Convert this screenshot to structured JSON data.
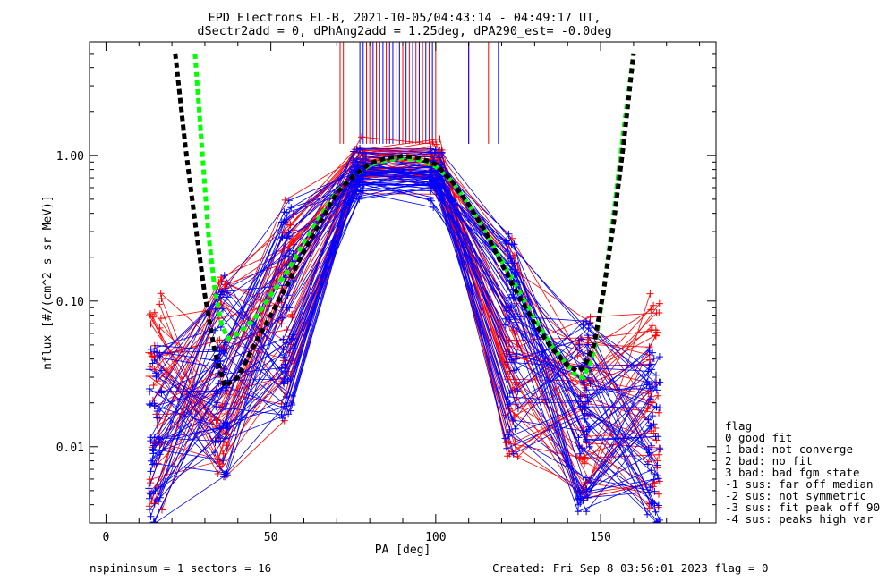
{
  "chart_data": {
    "type": "line",
    "title": "EPD Electrons EL-B, 2021-10-05/04:43:14 - 04:49:17 UT,",
    "subtitle": "dSectr2add = 0, dPhAng2add = 1.25deg, dPA290_est=  -0.0deg",
    "xlabel": "PA [deg]",
    "ylabel": "nflux [#/(cm^2 s sr MeV)]",
    "xlim": [
      -5,
      185
    ],
    "ylim": [
      0.003,
      6.0
    ],
    "yscale": "log",
    "xticks": [
      0,
      50,
      100,
      150
    ],
    "yticks": [
      {
        "value": 1.0,
        "label": "1.00"
      },
      {
        "value": 0.1,
        "label": "0.10"
      },
      {
        "value": 0.01,
        "label": "0.01"
      }
    ],
    "bundle_pa": [
      15,
      35,
      55,
      77,
      100,
      123,
      145,
      166
    ],
    "series": [
      {
        "color": "#ff0000",
        "peak_range": [
          0.7,
          1.3
        ],
        "low_range": [
          0.0035,
          0.12
        ],
        "count": 45
      },
      {
        "color": "#0000ff",
        "peak_range": [
          0.6,
          1.1
        ],
        "low_range": [
          0.003,
          0.05
        ],
        "count": 55
      }
    ],
    "fit_black": {
      "color": "#000000",
      "x": [
        21,
        24,
        27,
        30,
        33,
        36,
        40,
        45,
        50,
        55,
        60,
        65,
        70,
        75,
        80,
        85,
        90,
        95,
        100,
        105,
        110,
        115,
        120,
        125,
        130,
        135,
        140,
        143,
        145,
        148,
        151,
        154,
        157,
        160
      ],
      "y": [
        5.0,
        1.2,
        0.35,
        0.11,
        0.045,
        0.026,
        0.03,
        0.05,
        0.08,
        0.13,
        0.22,
        0.35,
        0.55,
        0.72,
        0.88,
        0.96,
        0.99,
        0.96,
        0.87,
        0.66,
        0.46,
        0.3,
        0.18,
        0.11,
        0.07,
        0.048,
        0.036,
        0.033,
        0.035,
        0.05,
        0.12,
        0.35,
        1.2,
        5.0
      ]
    },
    "fit_green": {
      "color": "#00ff00",
      "x": [
        27,
        29,
        31,
        33,
        35,
        37,
        40,
        45,
        50,
        55,
        60,
        65,
        70,
        75,
        80,
        85,
        90,
        95,
        100,
        105,
        110,
        115,
        120,
        125,
        130,
        135,
        140,
        143,
        145,
        148,
        151,
        154,
        157,
        160
      ],
      "y": [
        5.0,
        1.2,
        0.3,
        0.12,
        0.07,
        0.055,
        0.06,
        0.075,
        0.11,
        0.16,
        0.25,
        0.38,
        0.56,
        0.72,
        0.86,
        0.93,
        0.96,
        0.93,
        0.84,
        0.66,
        0.46,
        0.3,
        0.19,
        0.12,
        0.075,
        0.05,
        0.036,
        0.03,
        0.03,
        0.045,
        0.12,
        0.4,
        1.5,
        5.0
      ]
    },
    "vlines": {
      "red_x": [
        71,
        72,
        79,
        80,
        82,
        85,
        88,
        90,
        92,
        94,
        96,
        98,
        100,
        110,
        116
      ],
      "blue_x": [
        77,
        78,
        81,
        83,
        84,
        86,
        87,
        89,
        91,
        93,
        95,
        97,
        99,
        110,
        119
      ]
    },
    "legend_title": "flag",
    "legend": [
      " 0 good fit",
      " 1 bad: not converge",
      " 2 bad: no fit",
      " 3 bad: bad fgm state",
      "-1 sus: far off median",
      "-2 sus: not symmetric",
      "-3 sus: fit peak off 90",
      "-4 sus: peaks high var"
    ],
    "legend_placement": "right, outside plot, bottom"
  },
  "footer": {
    "left": "nspininsum =  1  sectors = 16",
    "right": "Created: Fri Sep  8 03:56:01 2023   flag = 0"
  }
}
